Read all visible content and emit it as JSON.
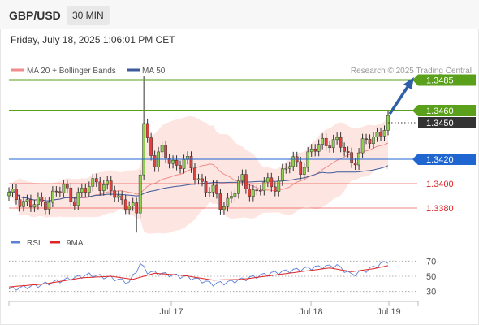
{
  "header": {
    "symbol": "GBP/USD",
    "timeframe": "30 MIN",
    "datetime": "Friday, July 18, 2025 1:06:01 PM CET"
  },
  "chart_data": {
    "type": "candlestick",
    "title": "GBP/USD",
    "legend": [
      {
        "name": "MA 20 + Bollinger Bands",
        "color": "#f28b8b"
      },
      {
        "name": "MA 50",
        "color": "#3d5a99"
      }
    ],
    "credit": "Research © 2025 Trading Central",
    "x_tick_labels": [
      "Jul 17",
      "Jul 18",
      "Jul 19"
    ],
    "price_levels": [
      {
        "label": "1.3485",
        "value": 1.3485,
        "kind": "target",
        "color": "#5aa01a"
      },
      {
        "label": "1.3460",
        "value": 1.346,
        "kind": "resistance",
        "color": "#5aa01a"
      },
      {
        "label": "1.3450",
        "value": 1.345,
        "kind": "last",
        "color": "#333333"
      },
      {
        "label": "1.3420",
        "value": 1.342,
        "kind": "pivot",
        "color": "#1f66d1"
      },
      {
        "label": "1.3400",
        "value": 1.34,
        "kind": "support",
        "color": "#e02424"
      },
      {
        "label": "1.3380",
        "value": 1.338,
        "kind": "support",
        "color": "#e02424"
      }
    ],
    "price_path": [
      [
        0,
        1.339
      ],
      [
        3,
        1.3388
      ],
      [
        6,
        1.3382
      ],
      [
        9,
        1.3384
      ],
      [
        12,
        1.339
      ],
      [
        15,
        1.3396
      ],
      [
        18,
        1.3388
      ],
      [
        21,
        1.3394
      ],
      [
        24,
        1.3404
      ],
      [
        27,
        1.3396
      ],
      [
        30,
        1.3388
      ],
      [
        33,
        1.3384
      ],
      [
        35,
        1.3372
      ],
      [
        36,
        1.341
      ],
      [
        37,
        1.345
      ],
      [
        38,
        1.3436
      ],
      [
        40,
        1.3418
      ],
      [
        42,
        1.3425
      ],
      [
        44,
        1.342
      ],
      [
        46,
        1.3416
      ],
      [
        48,
        1.3418
      ],
      [
        50,
        1.3412
      ],
      [
        52,
        1.3405
      ],
      [
        54,
        1.3396
      ],
      [
        56,
        1.3392
      ],
      [
        58,
        1.3384
      ],
      [
        60,
        1.3386
      ],
      [
        62,
        1.3394
      ],
      [
        64,
        1.3402
      ],
      [
        66,
        1.3396
      ],
      [
        68,
        1.3392
      ],
      [
        70,
        1.34
      ],
      [
        72,
        1.3398
      ],
      [
        74,
        1.3404
      ],
      [
        76,
        1.3412
      ],
      [
        78,
        1.3418
      ],
      [
        80,
        1.3414
      ],
      [
        82,
        1.3422
      ],
      [
        84,
        1.3428
      ],
      [
        86,
        1.3434
      ],
      [
        88,
        1.3436
      ],
      [
        90,
        1.3432
      ],
      [
        92,
        1.3428
      ],
      [
        94,
        1.3418
      ],
      [
        96,
        1.3426
      ],
      [
        98,
        1.3434
      ],
      [
        100,
        1.3438
      ],
      [
        102,
        1.3444
      ],
      [
        104,
        1.345
      ]
    ],
    "y_range": [
      1.336,
      1.35
    ],
    "rsi": {
      "legend": [
        {
          "name": "RSI",
          "color": "#5b7fd6"
        },
        {
          "name": "9MA",
          "color": "#e02424"
        }
      ],
      "levels": [
        "70",
        "50",
        "30"
      ],
      "y_range": [
        20,
        80
      ],
      "rsi_path": [
        [
          0,
          33
        ],
        [
          8,
          38
        ],
        [
          16,
          46
        ],
        [
          22,
          52
        ],
        [
          28,
          48
        ],
        [
          33,
          42
        ],
        [
          36,
          66
        ],
        [
          38,
          56
        ],
        [
          44,
          52
        ],
        [
          50,
          48
        ],
        [
          56,
          40
        ],
        [
          60,
          42
        ],
        [
          66,
          48
        ],
        [
          72,
          54
        ],
        [
          78,
          58
        ],
        [
          84,
          62
        ],
        [
          90,
          64
        ],
        [
          94,
          52
        ],
        [
          98,
          58
        ],
        [
          102,
          66
        ],
        [
          104,
          70
        ]
      ],
      "ma_path": [
        [
          0,
          36
        ],
        [
          10,
          40
        ],
        [
          20,
          48
        ],
        [
          28,
          50
        ],
        [
          34,
          46
        ],
        [
          40,
          54
        ],
        [
          48,
          51
        ],
        [
          56,
          45
        ],
        [
          64,
          46
        ],
        [
          72,
          51
        ],
        [
          80,
          56
        ],
        [
          88,
          61
        ],
        [
          94,
          56
        ],
        [
          100,
          60
        ],
        [
          104,
          64
        ]
      ]
    }
  }
}
